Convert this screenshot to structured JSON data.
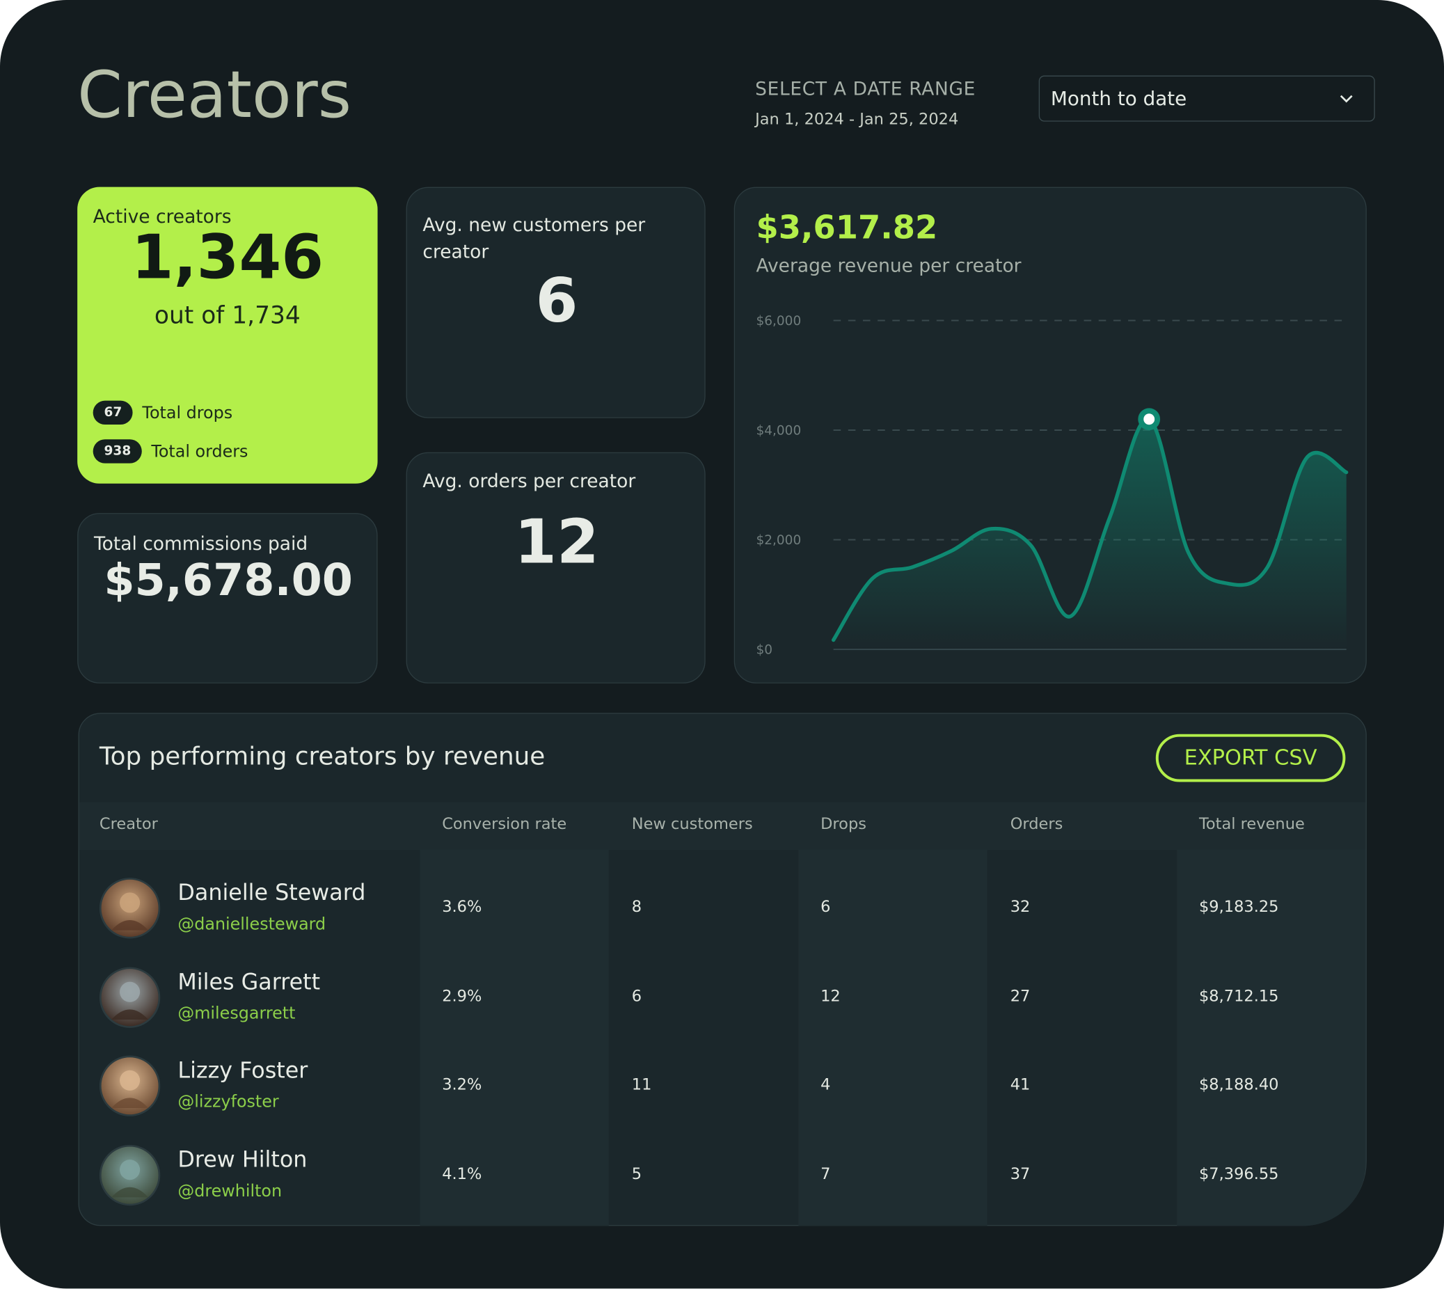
{
  "header": {
    "title": "Creators",
    "date_range_label": "SELECT A DATE RANGE",
    "date_range": "Jan 1, 2024 - Jan 25, 2024",
    "date_select": "Month to date"
  },
  "cards": {
    "active_creators": {
      "label": "Active creators",
      "value": "1,346",
      "subtitle": "out of 1,734",
      "stats": [
        {
          "value": "67",
          "label": "Total drops"
        },
        {
          "value": "938",
          "label": "Total orders"
        }
      ]
    },
    "commissions": {
      "label": "Total commissions paid",
      "value": "$5,678.00"
    },
    "new_customers": {
      "label": "Avg. new customers per creator",
      "value": "6"
    },
    "orders": {
      "label": "Avg. orders per creator",
      "value": "12"
    }
  },
  "chart": {
    "type": "line",
    "title": "$3,617.82",
    "subtitle": "Average revenue per creator",
    "categories": [
      null,
      null,
      null,
      null,
      null,
      null,
      null,
      null,
      null,
      null,
      null,
      null,
      null,
      null
    ],
    "values": [
      170,
      1300,
      1500,
      1800,
      2200,
      1900,
      600,
      2400,
      4200,
      1760,
      1200,
      1500,
      3500,
      3230
    ],
    "color": "#0f8a72",
    "ylim": [
      0,
      6000
    ],
    "yticks": [
      {
        "value": 0,
        "label": "$0"
      },
      {
        "value": 2000,
        "label": "$2,000"
      },
      {
        "value": 4000,
        "label": "$4,000"
      },
      {
        "value": 6000,
        "label": "$6,000"
      }
    ],
    "grid": true
  },
  "table": {
    "title": "Top performing creators by revenue",
    "button": "EXPORT CSV",
    "columns": [
      "Creator",
      "Conversion rate",
      "New customers",
      "Drops",
      "Orders",
      "Total revenue"
    ],
    "rows": [
      {
        "name": "Danielle Steward",
        "handle": "@daniellesteward",
        "cells": [
          "3.6%",
          "8",
          "6",
          "32",
          "$9,183.25"
        ]
      },
      {
        "name": "Miles Garrett",
        "handle": "@milesgarrett",
        "cells": [
          "2.9%",
          "6",
          "12",
          "27",
          "$8,712.15"
        ]
      },
      {
        "name": "Lizzy Foster",
        "handle": "@lizzyfoster",
        "cells": [
          "3.2%",
          "11",
          "4",
          "41",
          "$8,188.40"
        ]
      },
      {
        "name": "Drew Hilton",
        "handle": "@drewhilton",
        "cells": [
          "4.1%",
          "5",
          "7",
          "37",
          "$7,396.55"
        ]
      }
    ]
  }
}
